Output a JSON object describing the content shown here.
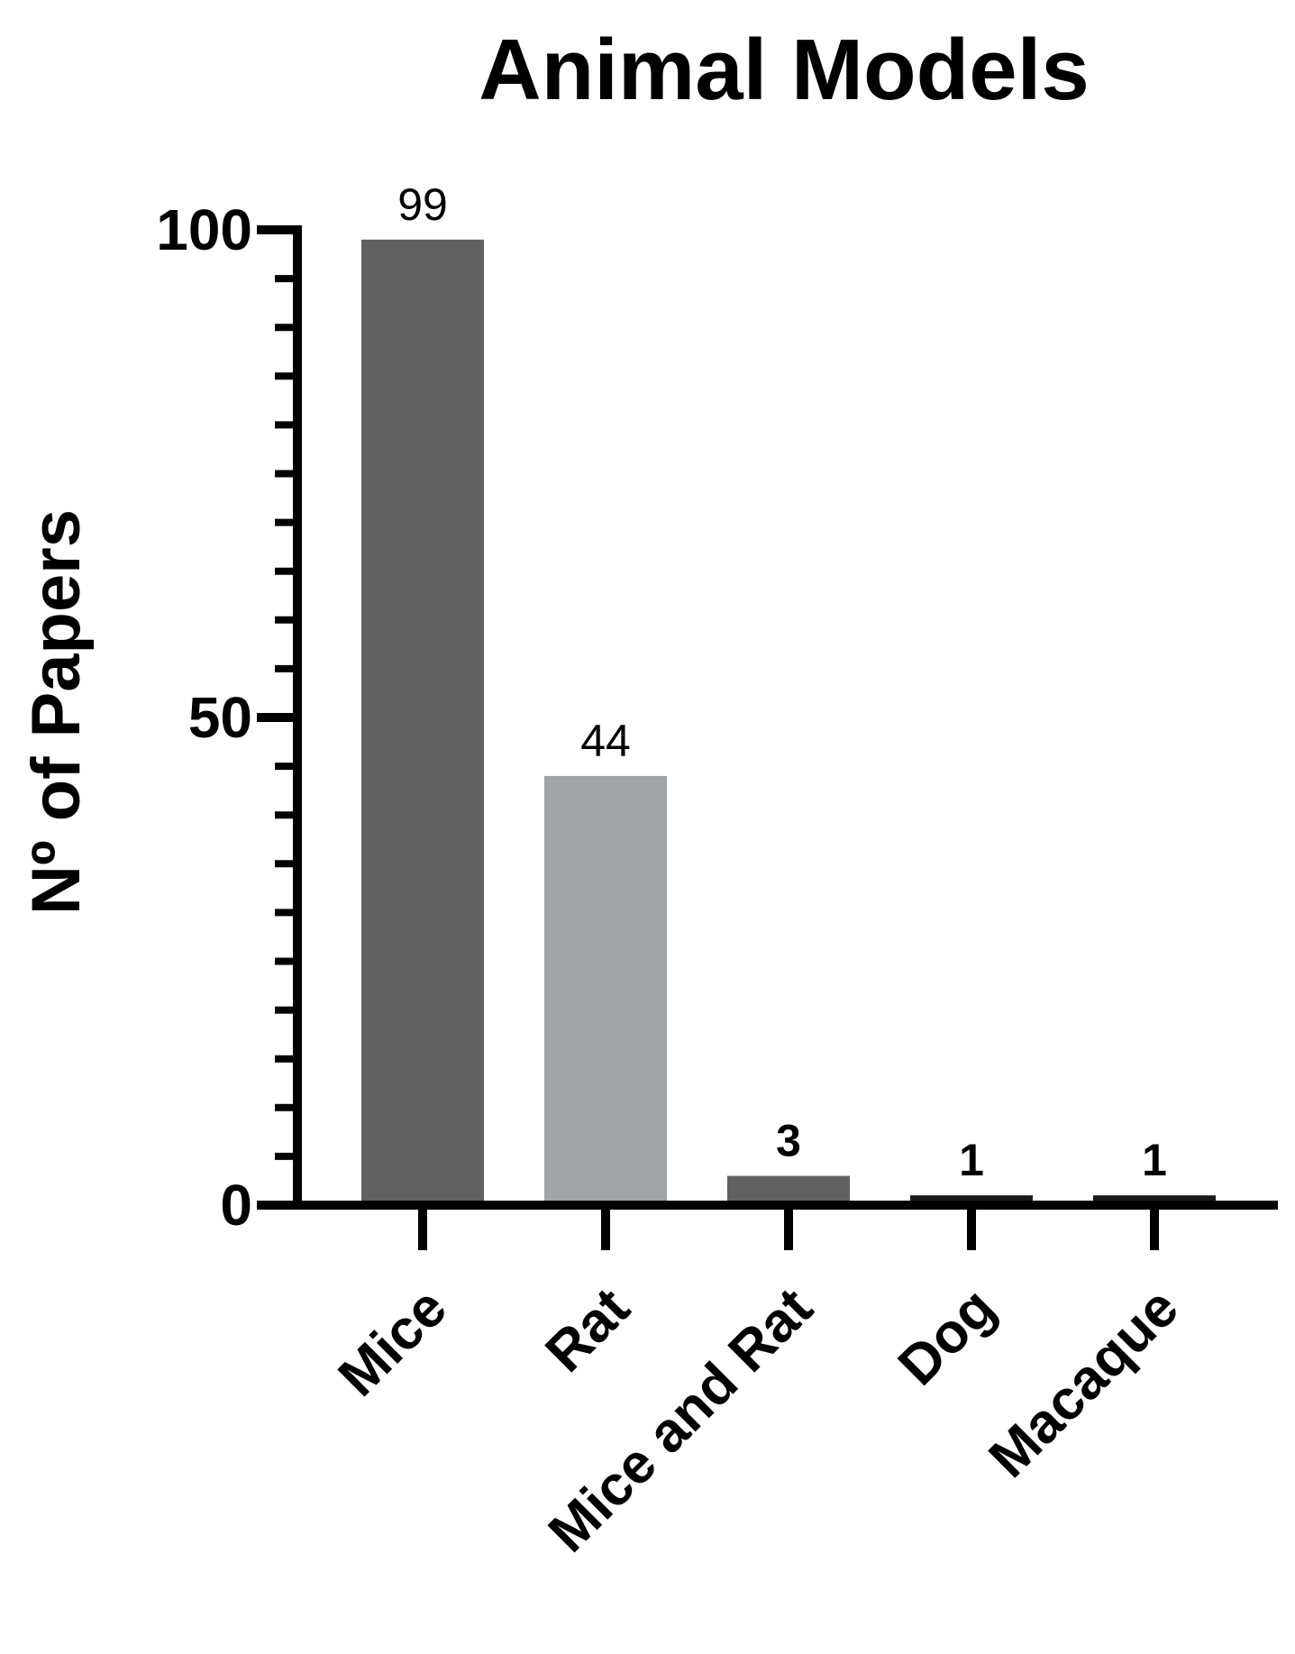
{
  "chart_data": {
    "type": "bar",
    "title": "Animal Models",
    "xlabel": "",
    "ylabel": "Nº of Papers",
    "categories": [
      "Mice",
      "Rat",
      "Mice and Rat",
      "Dog",
      "Macaque"
    ],
    "values": [
      99,
      44,
      3,
      1,
      1
    ],
    "data_labels": [
      "99",
      "44",
      "3",
      "1",
      "1"
    ],
    "ylim": [
      0,
      100
    ],
    "yticks": [
      0,
      50,
      100
    ],
    "ytick_labels": [
      "0",
      "50",
      "100"
    ],
    "minor_tick_step": 5,
    "bar_colors": [
      "#606060",
      "#a2a3a7",
      "#606060",
      "#1a1a1a",
      "#1a1a1a"
    ],
    "grid": false,
    "legend": "none"
  }
}
